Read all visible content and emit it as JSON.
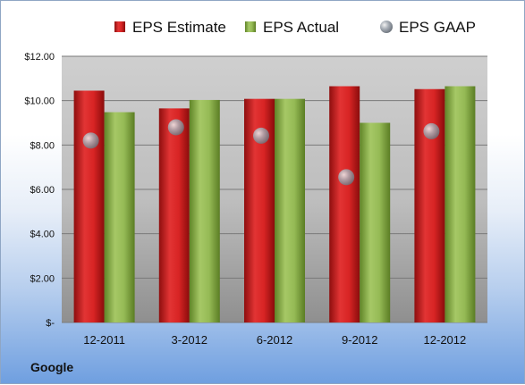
{
  "chart_data": {
    "type": "bar",
    "categories": [
      "12-2011",
      "3-2012",
      "6-2012",
      "9-2012",
      "12-2012"
    ],
    "series": [
      {
        "name": "EPS Estimate",
        "kind": "bar",
        "color": "#c81e1e",
        "values": [
          10.45,
          9.65,
          10.08,
          10.65,
          10.52
        ]
      },
      {
        "name": "EPS Actual",
        "kind": "bar",
        "color": "#8cb04a",
        "values": [
          9.48,
          10.03,
          10.08,
          9.0,
          10.65
        ]
      },
      {
        "name": "EPS GAAP",
        "kind": "marker",
        "color": "#9fa7b0",
        "values": [
          8.2,
          8.8,
          8.42,
          6.55,
          8.62
        ]
      }
    ],
    "yticks": [
      "$-",
      "$2.00",
      "$4.00",
      "$6.00",
      "$8.00",
      "$10.00",
      "$12.00"
    ],
    "ylim": [
      0,
      12
    ],
    "grid": true,
    "legend_position": "top",
    "title": "",
    "xlabel": "",
    "ylabel": ""
  },
  "footer": {
    "company": "Google"
  }
}
